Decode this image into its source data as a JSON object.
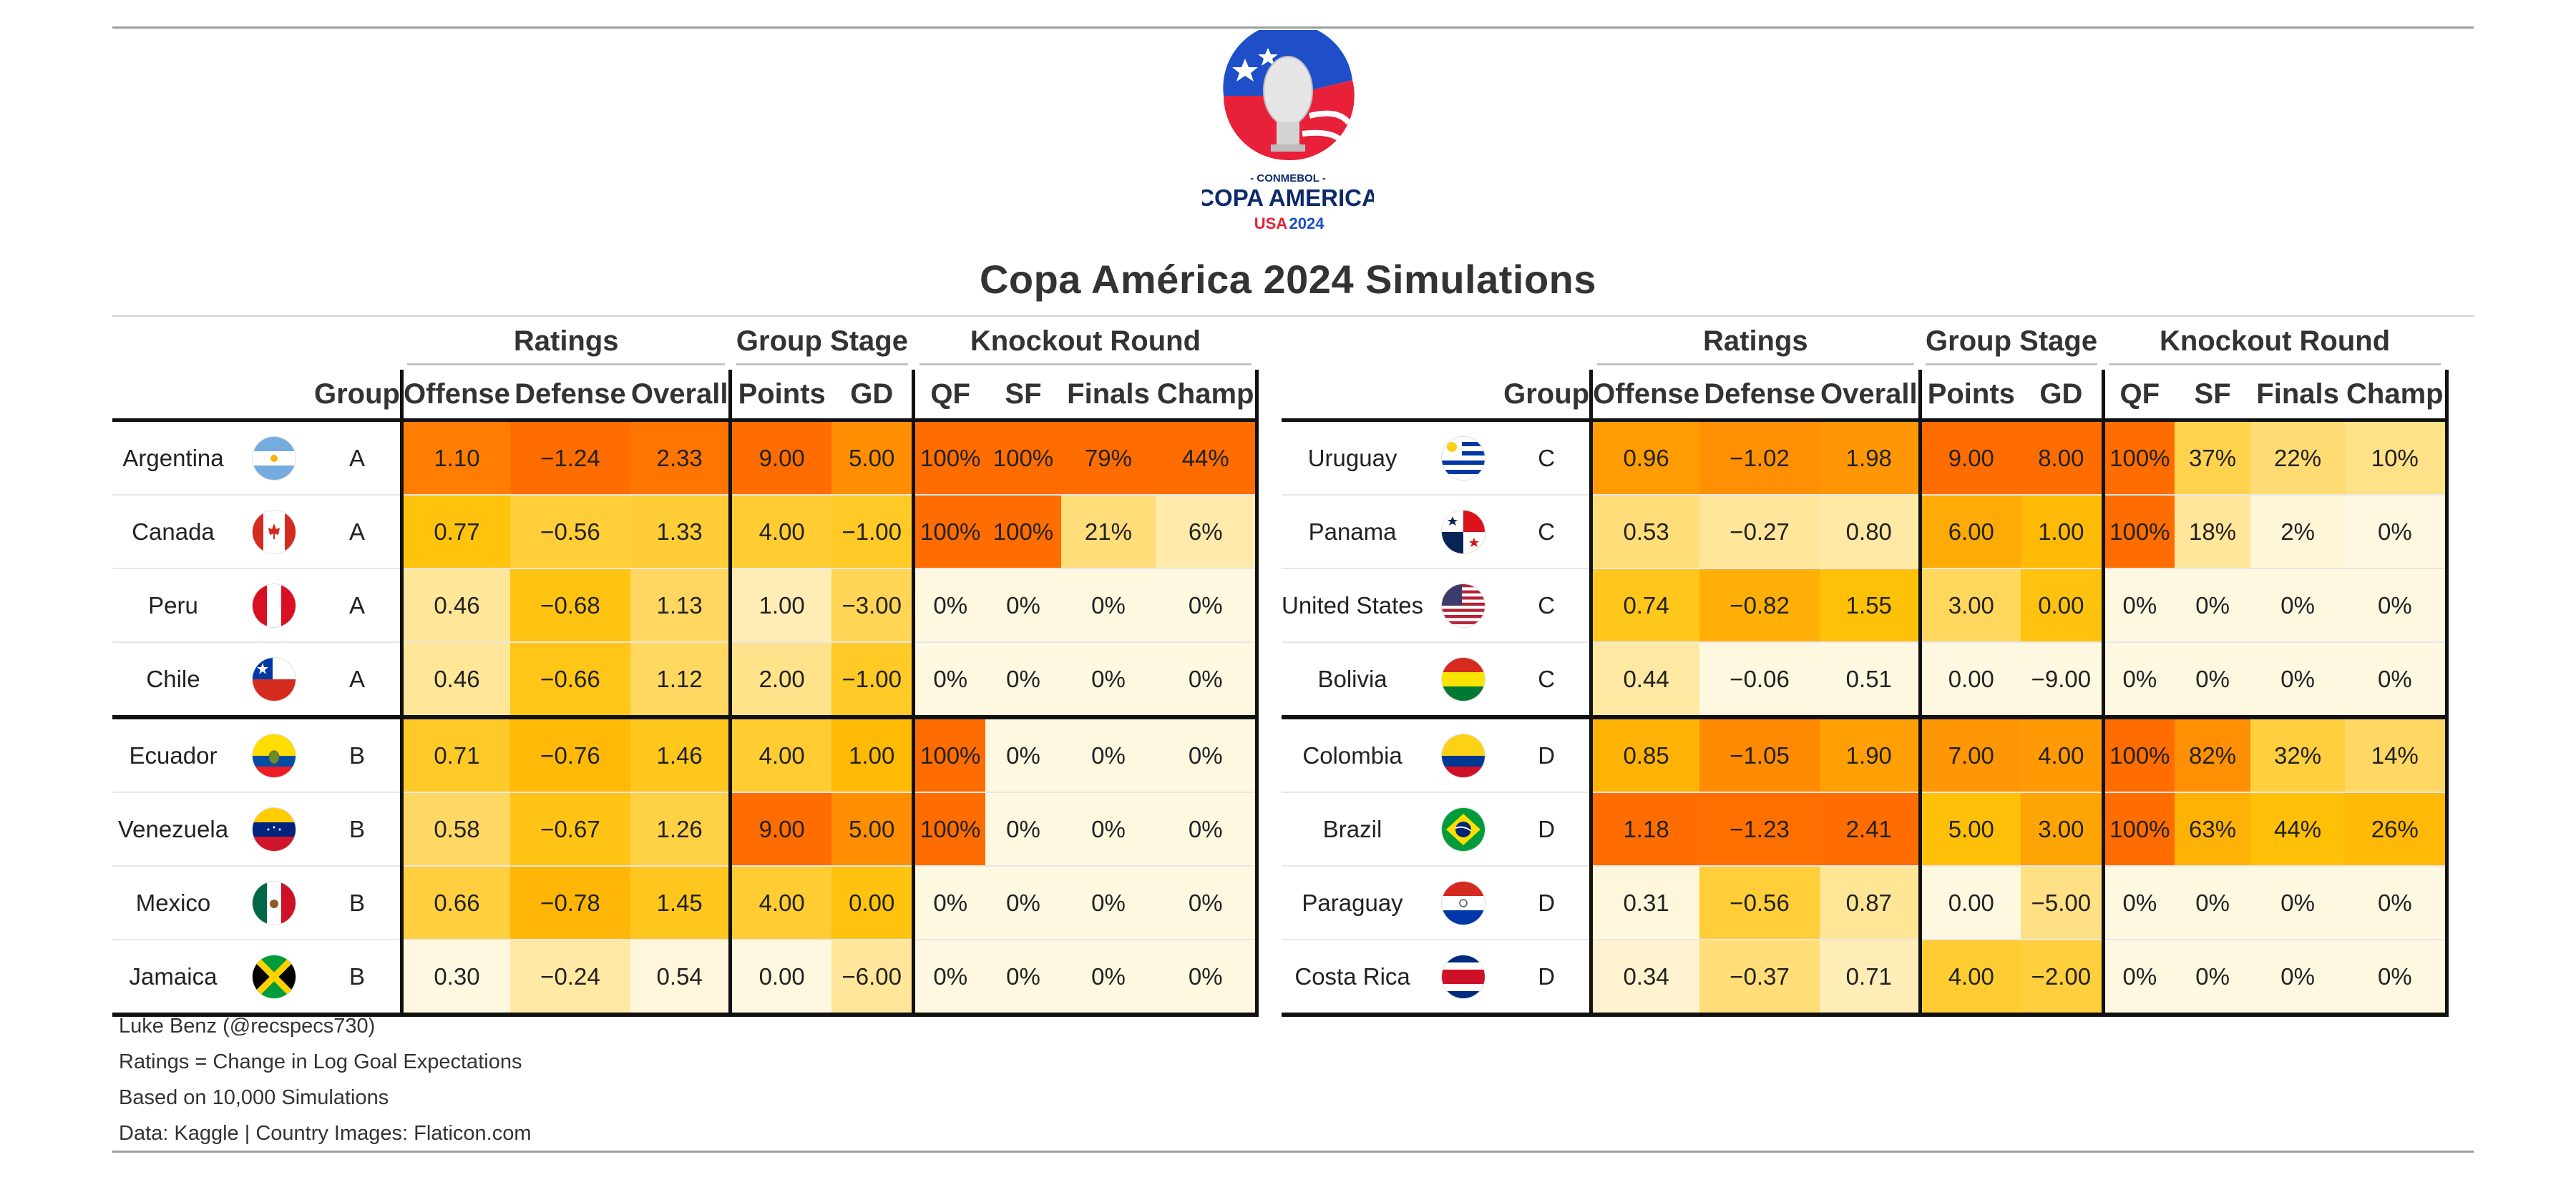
{
  "logo": {
    "small": "- CONMEBOL -",
    "main": "COPA AMERICA",
    "sub_country": "USA",
    "sub_year": "2024"
  },
  "title": "Copa América 2024 Simulations",
  "spanners": {
    "ratings": "Ratings",
    "group_stage": "Group Stage",
    "knockout": "Knockout Round"
  },
  "columns": {
    "group": "Group",
    "offense": "Offense",
    "defense": "Defense",
    "overall": "Overall",
    "points": "Points",
    "gd": "GD",
    "qf": "QF",
    "sf": "SF",
    "finals": "Finals",
    "champ": "Champ"
  },
  "left_table": [
    {
      "team": "Argentina",
      "flag": "argentina-flag-icon",
      "group": "A",
      "offense": "1.10",
      "defense": "−1.24",
      "overall": "2.33",
      "points": "9.00",
      "gd": "5.00",
      "qf": "100%",
      "sf": "100%",
      "finals": "79%",
      "champ": "44%"
    },
    {
      "team": "Canada",
      "flag": "canada-flag-icon",
      "group": "A",
      "offense": "0.77",
      "defense": "−0.56",
      "overall": "1.33",
      "points": "4.00",
      "gd": "−1.00",
      "qf": "100%",
      "sf": "100%",
      "finals": "21%",
      "champ": "6%"
    },
    {
      "team": "Peru",
      "flag": "peru-flag-icon",
      "group": "A",
      "offense": "0.46",
      "defense": "−0.68",
      "overall": "1.13",
      "points": "1.00",
      "gd": "−3.00",
      "qf": "0%",
      "sf": "0%",
      "finals": "0%",
      "champ": "0%"
    },
    {
      "team": "Chile",
      "flag": "chile-flag-icon",
      "group": "A",
      "offense": "0.46",
      "defense": "−0.66",
      "overall": "1.12",
      "points": "2.00",
      "gd": "−1.00",
      "qf": "0%",
      "sf": "0%",
      "finals": "0%",
      "champ": "0%"
    },
    {
      "team": "Ecuador",
      "flag": "ecuador-flag-icon",
      "group": "B",
      "offense": "0.71",
      "defense": "−0.76",
      "overall": "1.46",
      "points": "4.00",
      "gd": "1.00",
      "qf": "100%",
      "sf": "0%",
      "finals": "0%",
      "champ": "0%"
    },
    {
      "team": "Venezuela",
      "flag": "venezuela-flag-icon",
      "group": "B",
      "offense": "0.58",
      "defense": "−0.67",
      "overall": "1.26",
      "points": "9.00",
      "gd": "5.00",
      "qf": "100%",
      "sf": "0%",
      "finals": "0%",
      "champ": "0%"
    },
    {
      "team": "Mexico",
      "flag": "mexico-flag-icon",
      "group": "B",
      "offense": "0.66",
      "defense": "−0.78",
      "overall": "1.45",
      "points": "4.00",
      "gd": "0.00",
      "qf": "0%",
      "sf": "0%",
      "finals": "0%",
      "champ": "0%"
    },
    {
      "team": "Jamaica",
      "flag": "jamaica-flag-icon",
      "group": "B",
      "offense": "0.30",
      "defense": "−0.24",
      "overall": "0.54",
      "points": "0.00",
      "gd": "−6.00",
      "qf": "0%",
      "sf": "0%",
      "finals": "0%",
      "champ": "0%"
    }
  ],
  "right_table": [
    {
      "team": "Uruguay",
      "flag": "uruguay-flag-icon",
      "group": "C",
      "offense": "0.96",
      "defense": "−1.02",
      "overall": "1.98",
      "points": "9.00",
      "gd": "8.00",
      "qf": "100%",
      "sf": "37%",
      "finals": "22%",
      "champ": "10%"
    },
    {
      "team": "Panama",
      "flag": "panama-flag-icon",
      "group": "C",
      "offense": "0.53",
      "defense": "−0.27",
      "overall": "0.80",
      "points": "6.00",
      "gd": "1.00",
      "qf": "100%",
      "sf": "18%",
      "finals": "2%",
      "champ": "0%"
    },
    {
      "team": "United States",
      "flag": "usa-flag-icon",
      "group": "C",
      "offense": "0.74",
      "defense": "−0.82",
      "overall": "1.55",
      "points": "3.00",
      "gd": "0.00",
      "qf": "0%",
      "sf": "0%",
      "finals": "0%",
      "champ": "0%"
    },
    {
      "team": "Bolivia",
      "flag": "bolivia-flag-icon",
      "group": "C",
      "offense": "0.44",
      "defense": "−0.06",
      "overall": "0.51",
      "points": "0.00",
      "gd": "−9.00",
      "qf": "0%",
      "sf": "0%",
      "finals": "0%",
      "champ": "0%"
    },
    {
      "team": "Colombia",
      "flag": "colombia-flag-icon",
      "group": "D",
      "offense": "0.85",
      "defense": "−1.05",
      "overall": "1.90",
      "points": "7.00",
      "gd": "4.00",
      "qf": "100%",
      "sf": "82%",
      "finals": "32%",
      "champ": "14%"
    },
    {
      "team": "Brazil",
      "flag": "brazil-flag-icon",
      "group": "D",
      "offense": "1.18",
      "defense": "−1.23",
      "overall": "2.41",
      "points": "5.00",
      "gd": "3.00",
      "qf": "100%",
      "sf": "63%",
      "finals": "44%",
      "champ": "26%"
    },
    {
      "team": "Paraguay",
      "flag": "paraguay-flag-icon",
      "group": "D",
      "offense": "0.31",
      "defense": "−0.56",
      "overall": "0.87",
      "points": "0.00",
      "gd": "−5.00",
      "qf": "0%",
      "sf": "0%",
      "finals": "0%",
      "champ": "0%"
    },
    {
      "team": "Costa Rica",
      "flag": "costa-rica-flag-icon",
      "group": "D",
      "offense": "0.34",
      "defense": "−0.37",
      "overall": "0.71",
      "points": "4.00",
      "gd": "−2.00",
      "qf": "0%",
      "sf": "0%",
      "finals": "0%",
      "champ": "0%"
    }
  ],
  "footer": [
    "Luke Benz (@recspecs730)",
    "Ratings = Change in Log Goal Expectations",
    "Based on 10,000 Simulations",
    "Data: Kaggle | Country Images: Flaticon.com"
  ],
  "colors": {
    "scale_low": "#fff8e1",
    "scale_mid": "#ffc107",
    "scale_high": "#ff6d00"
  }
}
